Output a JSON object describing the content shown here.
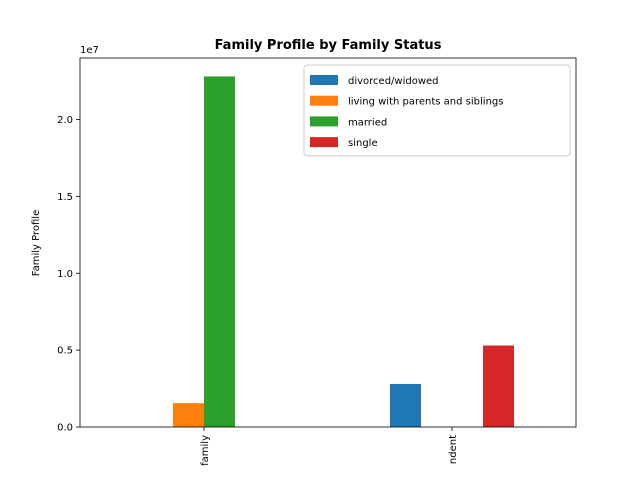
{
  "chart_data": {
    "type": "bar",
    "title": "Family Profile by Family Status",
    "xlabel": "",
    "ylabel": "Family Profile",
    "offset_text": "1e7",
    "categories": [
      "family",
      "ndent"
    ],
    "ylim": [
      0,
      24000000
    ],
    "yticks": [
      0,
      5000000,
      10000000,
      15000000,
      20000000
    ],
    "ytick_labels": [
      "0.0",
      "0.5",
      "1.0",
      "1.5",
      "2.0"
    ],
    "legend_position": "top-right",
    "grid": false,
    "series": [
      {
        "name": "divorced/widowed",
        "color": "#1f77b4",
        "values": [
          0,
          2800000
        ]
      },
      {
        "name": "living with parents and siblings",
        "color": "#ff7f0e",
        "values": [
          1550000,
          0
        ]
      },
      {
        "name": "married",
        "color": "#2ca02c",
        "values": [
          22800000,
          0
        ]
      },
      {
        "name": "single",
        "color": "#d62728",
        "values": [
          0,
          5300000
        ]
      }
    ]
  }
}
